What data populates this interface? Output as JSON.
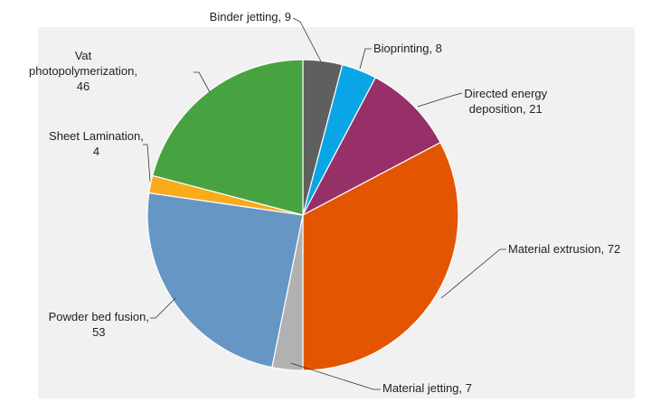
{
  "chart_data": {
    "type": "pie",
    "title": "",
    "start_angle_deg": 0,
    "direction": "clockwise",
    "slices": [
      {
        "label": "Binder jetting",
        "value": 9,
        "color": "#5f5f5f",
        "text_lines": [
          "Binder jetting, 9"
        ]
      },
      {
        "label": "Bioprinting",
        "value": 8,
        "color": "#0aa5e6",
        "text_lines": [
          "Bioprinting, 8"
        ]
      },
      {
        "label": "Directed energy deposition",
        "value": 21,
        "color": "#973068",
        "text_lines": [
          "Directed energy",
          "deposition, 21"
        ]
      },
      {
        "label": "Material extrusion",
        "value": 72,
        "color": "#e35500",
        "text_lines": [
          "Material extrusion, 72"
        ]
      },
      {
        "label": "Material jetting",
        "value": 7,
        "color": "#b1b1b1",
        "text_lines": [
          "Material jetting, 7"
        ]
      },
      {
        "label": "Powder bed fusion",
        "value": 53,
        "color": "#6596c4",
        "text_lines": [
          "Powder bed fusion,",
          "53"
        ]
      },
      {
        "label": "Sheet Lamination",
        "value": 4,
        "color": "#f9ab1c",
        "text_lines": [
          "Sheet Lamination,",
          "4"
        ]
      },
      {
        "label": "Vat photopolymerization",
        "value": 46,
        "color": "#47a340",
        "text_lines": [
          "Vat",
          "photopolymerization,",
          "46"
        ]
      }
    ],
    "legend": "none",
    "data_labels": "outside with leader lines"
  }
}
